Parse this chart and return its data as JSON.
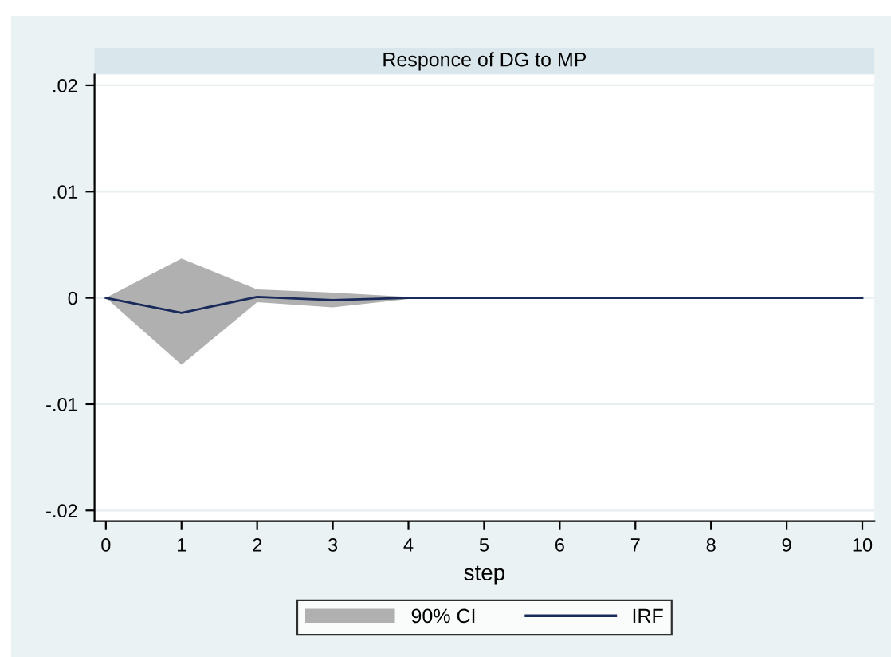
{
  "chart_data": {
    "type": "line",
    "title": "Responce of DG to MP",
    "xlabel": "step",
    "x": [
      0,
      1,
      2,
      3,
      4,
      5,
      6,
      7,
      8,
      9,
      10
    ],
    "series": [
      {
        "name": "IRF",
        "color": "#1a2a5a",
        "values": [
          0,
          -0.0014,
          0.0001,
          -0.0002,
          0,
          0,
          0,
          0,
          0,
          0,
          0
        ],
        "lower": [
          0,
          -0.0063,
          -0.0004,
          -0.0009,
          -0.0001,
          0,
          0,
          0,
          0,
          0,
          0
        ],
        "upper": [
          0,
          0.0037,
          0.0008,
          0.0005,
          0.0001,
          0,
          0,
          0,
          0,
          0,
          0
        ]
      }
    ],
    "annotations": [
      "90% CI"
    ],
    "xlim": [
      -0.15,
      10.16
    ],
    "ylim": [
      -0.021,
      0.021
    ],
    "xticks": [
      0,
      1,
      2,
      3,
      4,
      5,
      6,
      7,
      8,
      9,
      10
    ],
    "yticks": [
      {
        "value": -0.02,
        "label": "-.02"
      },
      {
        "value": -0.01,
        "label": "-.01"
      },
      0,
      {
        "value": 0.01,
        "label": ".01"
      },
      {
        "value": 0.02,
        "label": ".02"
      }
    ],
    "grid": "y",
    "legend": "bottom"
  }
}
